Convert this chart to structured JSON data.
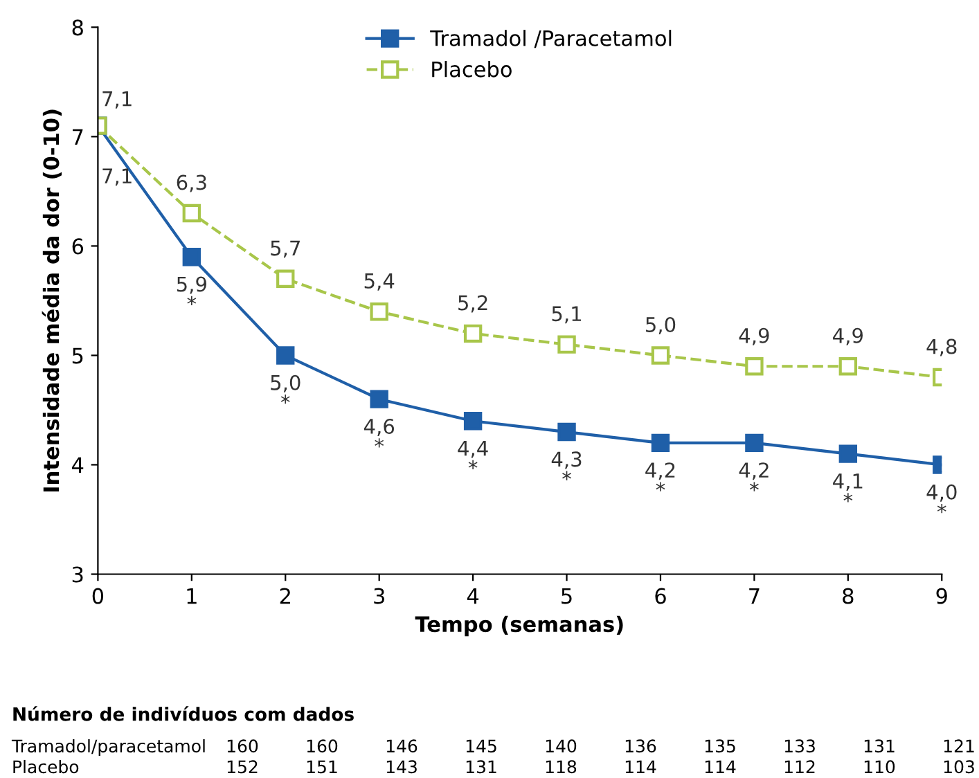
{
  "chart_data": {
    "type": "line",
    "xlabel": "Tempo (semanas)",
    "ylabel": "Intensidade média da dor (0-10)",
    "x": [
      0,
      1,
      2,
      3,
      4,
      5,
      6,
      7,
      8,
      9
    ],
    "series": [
      {
        "name": "Tramadol /Paracetamol",
        "color": "#1f5fa8",
        "line_style": "solid",
        "values": [
          7.1,
          5.9,
          5.0,
          4.6,
          4.4,
          4.3,
          4.2,
          4.2,
          4.1,
          4.0
        ],
        "value_labels": [
          "7,1",
          "5,9\n*",
          "5,0\n*",
          "4,6\n*",
          "4,4\n*",
          "4,3\n*",
          "4,2\n*",
          "4,2\n*",
          "4,1\n*",
          "4,0\n*"
        ]
      },
      {
        "name": "Placebo",
        "color": "#a8c64a",
        "line_style": "dashed",
        "values": [
          7.1,
          6.3,
          5.7,
          5.4,
          5.2,
          5.1,
          5.0,
          4.9,
          4.9,
          4.8
        ],
        "value_labels": [
          "7,1",
          "6,3",
          "5,7",
          "5,4",
          "5,2",
          "5,1",
          "5,0",
          "4,9",
          "4,9",
          "4,8"
        ]
      }
    ],
    "xlim": [
      0,
      9
    ],
    "xticks": [
      0,
      1,
      2,
      3,
      4,
      5,
      6,
      7,
      8,
      9
    ],
    "ylim": [
      3,
      8
    ],
    "yticks": [
      3,
      4,
      5,
      6,
      7,
      8
    ],
    "marker": "square",
    "legend": "top",
    "grid": false,
    "annotations": [
      "Número de indivíduos com dados",
      "Tramadol/paracetamol 160 160 146 145 140 136 135 133 131 121",
      "Placebo 152 151 143 131 118 114 114 112 110 103"
    ]
  }
}
